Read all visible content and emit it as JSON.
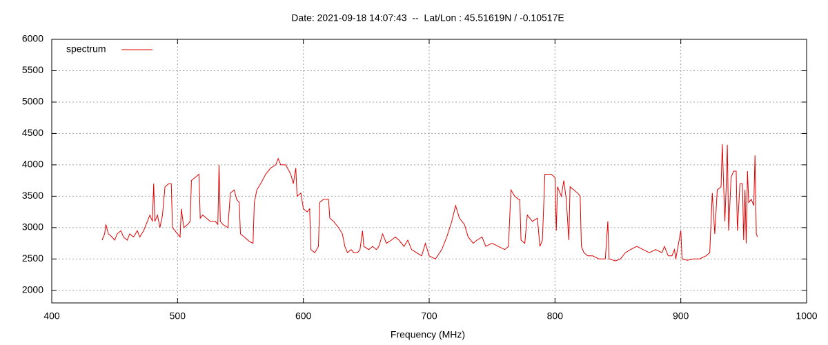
{
  "chart_data": {
    "type": "line",
    "title": "Date: 2021-09-18 14:07:43  --  Lat/Lon : 45.51619N / -0.10517E",
    "x_label": "Frequency (MHz)",
    "xlim": [
      400,
      1000
    ],
    "xticks": [
      400,
      500,
      600,
      700,
      800,
      900,
      1000
    ],
    "ylim": [
      1800,
      6000
    ],
    "yticks": [
      2000,
      2500,
      3000,
      3500,
      4000,
      4500,
      5000,
      5500,
      6000
    ],
    "grid": true,
    "legend": "upper left",
    "x": [
      440,
      442,
      443,
      445,
      448,
      450,
      452,
      455,
      457,
      460,
      462,
      465,
      468,
      470,
      473,
      476,
      478,
      480,
      481,
      482,
      484,
      486,
      488,
      490,
      493,
      495,
      496,
      498,
      500,
      502,
      503,
      505,
      508,
      510,
      511,
      514,
      517,
      518,
      520,
      523,
      526,
      530,
      532,
      533,
      534,
      536,
      540,
      542,
      545,
      547,
      549,
      550,
      553,
      557,
      560,
      561,
      563,
      566,
      570,
      574,
      578,
      580,
      582,
      586,
      590,
      592,
      594,
      595,
      598,
      600,
      603,
      605,
      606,
      609,
      612,
      613,
      616,
      620,
      621,
      624,
      628,
      631,
      633,
      635,
      638,
      640,
      643,
      645,
      647,
      648,
      652,
      655,
      658,
      660,
      663,
      666,
      670,
      673,
      676,
      680,
      683,
      686,
      690,
      694,
      697,
      700,
      705,
      710,
      714,
      718,
      721,
      724,
      728,
      731,
      735,
      738,
      742,
      745,
      750,
      755,
      760,
      763,
      765,
      768,
      771,
      772,
      773,
      776,
      778,
      782,
      786,
      788,
      790,
      792,
      797,
      800,
      801,
      802,
      805,
      807,
      809,
      811,
      812,
      815,
      818,
      820,
      821,
      823,
      826,
      830,
      835,
      840,
      842,
      843,
      848,
      852,
      856,
      860,
      865,
      870,
      875,
      880,
      885,
      887,
      890,
      893,
      895,
      896,
      900,
      901,
      905,
      910,
      915,
      920,
      923,
      925,
      927,
      929,
      932,
      933,
      935,
      936,
      937,
      938,
      940,
      942,
      944,
      945,
      947,
      949,
      950,
      951,
      952,
      953,
      954,
      956,
      958,
      959,
      960,
      961
    ],
    "series": [
      {
        "name": "spectrum",
        "color": "#e00000",
        "values": [
          2800,
          2900,
          3050,
          2900,
          2850,
          2800,
          2900,
          2950,
          2850,
          2800,
          2900,
          2850,
          2950,
          2850,
          2950,
          3100,
          3200,
          3100,
          3700,
          3100,
          3200,
          3000,
          3200,
          3650,
          3700,
          3700,
          3000,
          2950,
          2900,
          2850,
          3300,
          3000,
          3050,
          3100,
          3750,
          3800,
          3850,
          3150,
          3200,
          3150,
          3100,
          3100,
          3050,
          4000,
          3100,
          3050,
          3000,
          3550,
          3600,
          3450,
          3400,
          2900,
          2850,
          2780,
          2750,
          3400,
          3600,
          3700,
          3850,
          3950,
          4000,
          4100,
          4000,
          4000,
          3850,
          3700,
          3950,
          3500,
          3550,
          3300,
          3250,
          3300,
          2650,
          2600,
          2700,
          3400,
          3450,
          3450,
          3150,
          3100,
          3000,
          2900,
          2700,
          2600,
          2650,
          2600,
          2600,
          2650,
          2950,
          2700,
          2650,
          2700,
          2650,
          2700,
          2900,
          2750,
          2800,
          2850,
          2800,
          2700,
          2800,
          2650,
          2600,
          2550,
          2750,
          2550,
          2500,
          2650,
          2850,
          3100,
          3350,
          3150,
          3050,
          2850,
          2750,
          2800,
          2850,
          2700,
          2750,
          2700,
          2650,
          2700,
          3600,
          3500,
          3450,
          3450,
          2800,
          2750,
          3200,
          3100,
          3150,
          2700,
          2800,
          3850,
          3850,
          3800,
          2950,
          3650,
          3500,
          3750,
          3450,
          2800,
          3650,
          3600,
          3550,
          3500,
          2700,
          2600,
          2550,
          2550,
          2500,
          2500,
          3100,
          2500,
          2470,
          2500,
          2600,
          2650,
          2700,
          2650,
          2600,
          2650,
          2600,
          2700,
          2550,
          2550,
          2650,
          2500,
          2950,
          2500,
          2480,
          2500,
          2500,
          2550,
          2600,
          3550,
          2900,
          3600,
          3650,
          4330,
          3100,
          3600,
          4320,
          2950,
          3800,
          3900,
          3900,
          2950,
          3700,
          3700,
          2800,
          3600,
          2750,
          3900,
          3400,
          3450,
          3350,
          4150,
          2900,
          2850
        ]
      }
    ]
  }
}
